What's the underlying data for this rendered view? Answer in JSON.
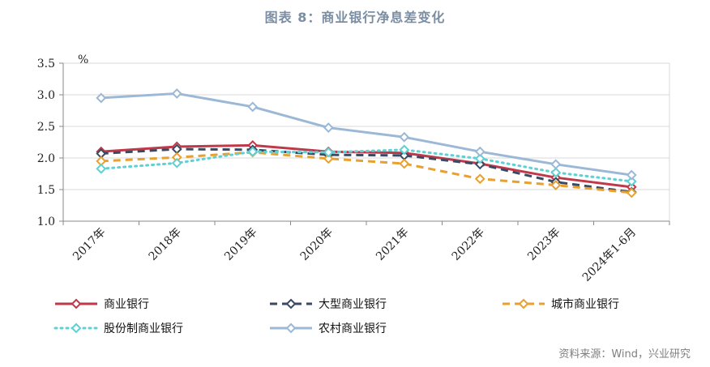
{
  "title": "图表 8：商业银行净息差变化",
  "source": "资料来源：Wind，兴业研究",
  "chart_data": {
    "type": "line",
    "unit": "%",
    "categories": [
      "2017年",
      "2018年",
      "2019年",
      "2020年",
      "2021年",
      "2022年",
      "2023年",
      "2024年1-6月"
    ],
    "ylim": [
      1.0,
      3.5
    ],
    "yticks": [
      "1.0",
      "1.5",
      "2.0",
      "2.5",
      "3.0",
      "3.5"
    ],
    "grid": true,
    "legend_position": "bottom",
    "series": [
      {
        "name": "商业银行",
        "color": "#c0394b",
        "style": "solid",
        "width": 3,
        "values": [
          2.1,
          2.18,
          2.2,
          2.1,
          2.08,
          1.91,
          1.69,
          1.54
        ]
      },
      {
        "name": "大型商业银行",
        "color": "#3a4a63",
        "style": "dashed",
        "width": 3,
        "values": [
          2.07,
          2.14,
          2.13,
          2.05,
          2.04,
          1.9,
          1.62,
          1.46
        ]
      },
      {
        "name": "城市商业银行",
        "color": "#e8a030",
        "style": "dashed",
        "width": 3,
        "values": [
          1.95,
          2.01,
          2.09,
          1.99,
          1.91,
          1.67,
          1.57,
          1.45
        ]
      },
      {
        "name": "股份制商业银行",
        "color": "#5fd0d3",
        "style": "dotted",
        "width": 3,
        "values": [
          1.83,
          1.92,
          2.1,
          2.09,
          2.13,
          1.99,
          1.77,
          1.63
        ]
      },
      {
        "name": "农村商业银行",
        "color": "#9bb8d6",
        "style": "solid",
        "width": 3,
        "values": [
          2.95,
          3.02,
          2.81,
          2.48,
          2.33,
          2.1,
          1.9,
          1.73
        ]
      }
    ]
  }
}
